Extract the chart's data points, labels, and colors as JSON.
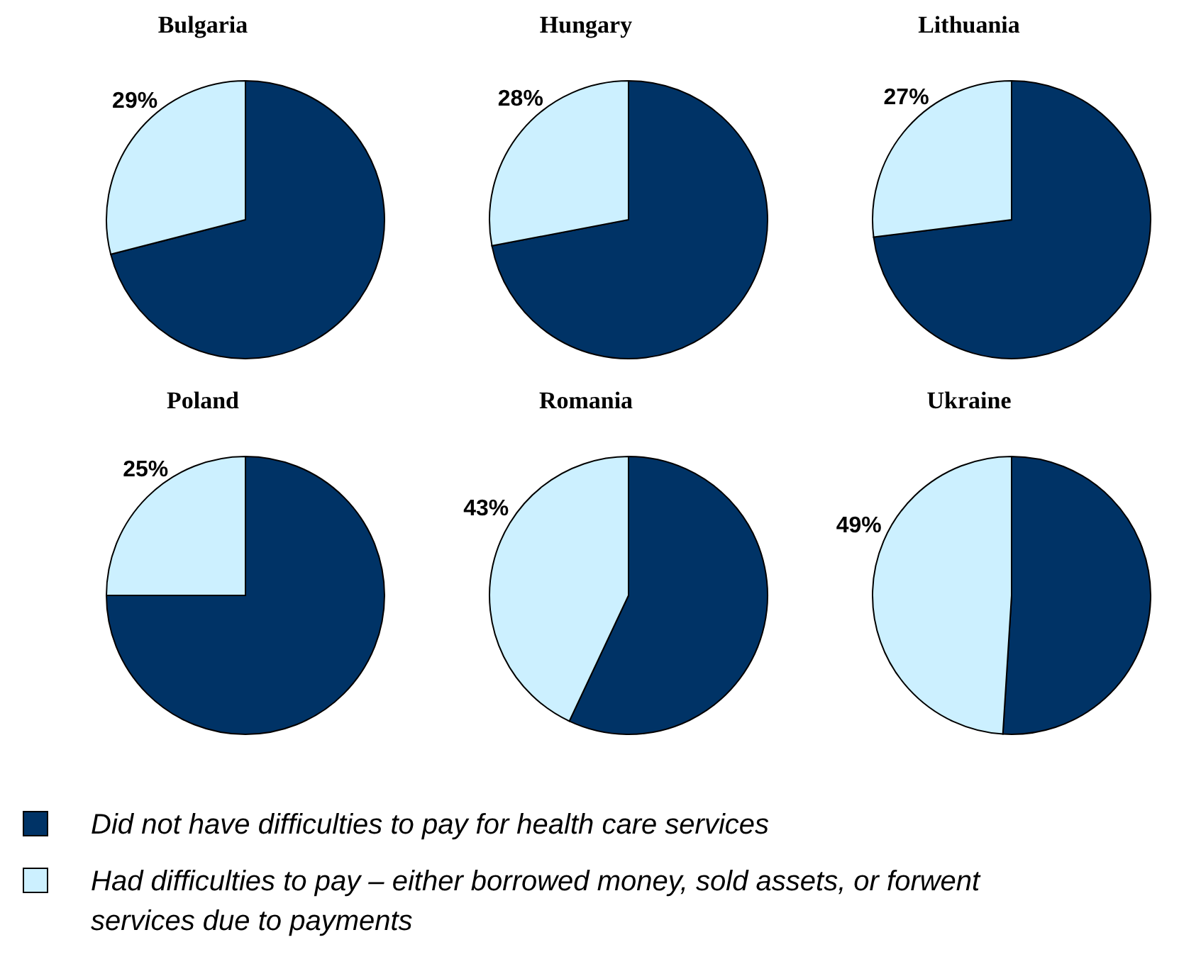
{
  "chart_data": [
    {
      "type": "pie",
      "title": "Bulgaria",
      "categories": [
        "Did not have difficulties to pay for health care services",
        "Had difficulties to pay – either borrowed money, sold assets, or forwent services due to payments"
      ],
      "values": [
        71,
        29
      ],
      "colors": [
        "#003366",
        "#ccf0ff"
      ],
      "value_labels": [
        null,
        "29%"
      ],
      "legend": "bottom"
    },
    {
      "type": "pie",
      "title": "Hungary",
      "values": [
        72,
        28
      ],
      "colors": [
        "#003366",
        "#ccf0ff"
      ],
      "value_labels": [
        null,
        "28%"
      ]
    },
    {
      "type": "pie",
      "title": "Lithuania",
      "values": [
        73,
        27
      ],
      "colors": [
        "#003366",
        "#ccf0ff"
      ],
      "value_labels": [
        null,
        "27%"
      ]
    },
    {
      "type": "pie",
      "title": "Poland",
      "values": [
        75,
        25
      ],
      "colors": [
        "#003366",
        "#ccf0ff"
      ],
      "value_labels": [
        null,
        "25%"
      ]
    },
    {
      "type": "pie",
      "title": "Romania",
      "values": [
        57,
        43
      ],
      "colors": [
        "#003366",
        "#ccf0ff"
      ],
      "value_labels": [
        null,
        "43%"
      ]
    },
    {
      "type": "pie",
      "title": "Ukraine",
      "values": [
        51,
        49
      ],
      "colors": [
        "#003366",
        "#ccf0ff"
      ],
      "value_labels": [
        null,
        "49%"
      ]
    }
  ]
}
